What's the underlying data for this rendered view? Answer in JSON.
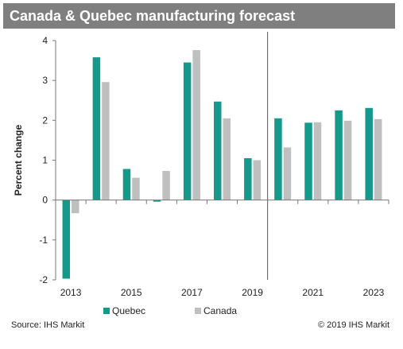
{
  "title": "Canada & Quebec manufacturing forecast",
  "source": "Source: IHS Markit",
  "copyright": "© 2019 IHS Markit",
  "colors": {
    "quebec": "#14998a",
    "canada": "#bfbfbf",
    "title_bg": "#7f7f7f"
  },
  "chart_data": {
    "type": "bar",
    "title": "Canada & Quebec manufacturing forecast",
    "xlabel": "",
    "ylabel": "Percent change",
    "ylim": [
      -2,
      4
    ],
    "yticks": [
      "-2",
      "-1",
      "0",
      "1",
      "2",
      "3",
      "4"
    ],
    "categories": [
      "2013",
      "2014",
      "2015",
      "2016",
      "2017",
      "2018",
      "2019",
      "2020",
      "2021",
      "2022",
      "2023"
    ],
    "xtick_labels": [
      "2013",
      "",
      "2015",
      "",
      "2017",
      "",
      "2019",
      "",
      "2021",
      "",
      "2023"
    ],
    "series": [
      {
        "name": "Quebec",
        "values": [
          -1.97,
          3.58,
          0.78,
          -0.04,
          3.45,
          2.47,
          1.05,
          2.05,
          1.94,
          2.25,
          2.31
        ]
      },
      {
        "name": "Canada",
        "values": [
          -0.33,
          2.96,
          0.56,
          0.73,
          3.76,
          2.05,
          1.0,
          1.32,
          1.95,
          1.99,
          2.03
        ]
      }
    ],
    "forecast_divider_after": "2019",
    "grid": false,
    "legend_position": "bottom"
  }
}
